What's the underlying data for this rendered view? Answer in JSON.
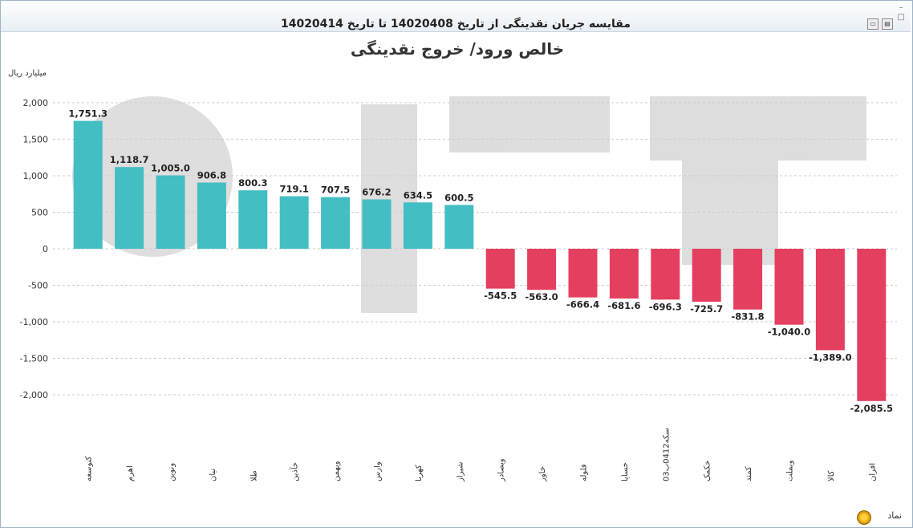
{
  "window": {
    "subtitle": "مقایسه جریان نقدینگی از تاریخ 14020408 تا تاریخ 14020414"
  },
  "footer": {
    "symbol_label": "نماد"
  },
  "colors": {
    "positive": "#43bec3",
    "negative": "#e43f5f",
    "grid": "#cccccc"
  },
  "chart_data": {
    "type": "bar",
    "title": "خالص ورود/ خروج نقدینگی",
    "ylabel": "میلیارد ریال",
    "ylim": [
      -2250,
      2250
    ],
    "yticks": [
      2000,
      1500,
      1000,
      500,
      0,
      -500,
      -1000,
      -1500,
      -2000
    ],
    "ytick_labels": [
      "2,000",
      "1,500",
      "1,000",
      "500",
      "0",
      "-500",
      "-1,000",
      "-1,500",
      "-2,000"
    ],
    "categories": [
      "کنوسعه",
      "اهرم",
      "ونوین",
      "نیان",
      "طلا",
      "خآذین",
      "وبهمن",
      "وارس",
      "کهربا",
      "شیراز",
      "وبصادر",
      "خاور",
      "فلوله",
      "خساپا",
      "سکه0412ب03",
      "خکمک",
      "کمند",
      "وبملت",
      "کالا",
      "افران"
    ],
    "values": [
      1751.3,
      1118.7,
      1005.0,
      906.8,
      800.3,
      719.1,
      707.5,
      676.2,
      634.5,
      600.5,
      -545.5,
      -563.0,
      -666.4,
      -681.6,
      -696.3,
      -725.7,
      -831.8,
      -1040.0,
      -1389.0,
      -2085.5
    ],
    "value_labels": [
      "1,751.3",
      "1,118.7",
      "1,005.0",
      "906.8",
      "800.3",
      "719.1",
      "707.5",
      "676.2",
      "634.5",
      "600.5",
      "-545.5",
      "-563.0",
      "-666.4",
      "-681.6",
      "-696.3",
      "-725.7",
      "-831.8",
      "-1,040.0",
      "-1,389.0",
      "-2,085.5"
    ],
    "grid": true,
    "legend": "none"
  }
}
